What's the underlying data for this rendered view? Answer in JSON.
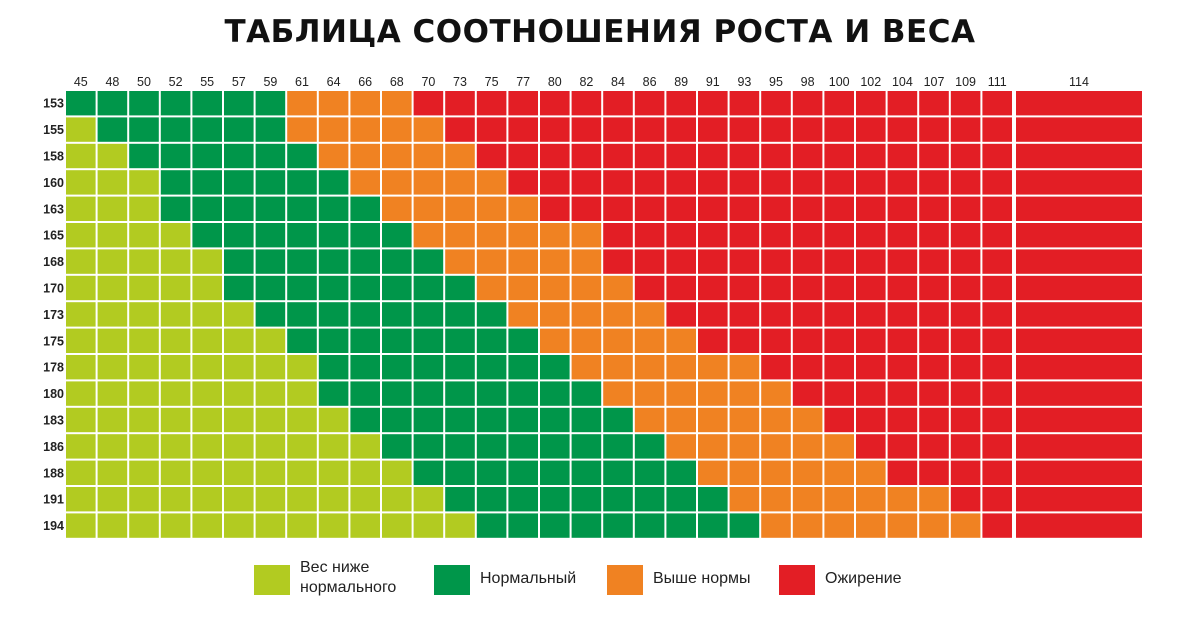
{
  "title": "ТАБЛИЦА СООТНОШЕНИЯ РОСТА И ВЕСА",
  "colors": {
    "underweight": "#b2cb21",
    "normal": "#00964a",
    "overweight": "#f08222",
    "obese": "#e31e25"
  },
  "chart_data": {
    "type": "heatmap",
    "title": "ТАБЛИЦА СООТНОШЕНИЯ РОСТА И ВЕСА",
    "x": [
      "45",
      "48",
      "50",
      "52",
      "55",
      "57",
      "59",
      "61",
      "64",
      "66",
      "68",
      "70",
      "73",
      "75",
      "77",
      "80",
      "82",
      "84",
      "86",
      "89",
      "91",
      "93",
      "95",
      "98",
      "100",
      "102",
      "104",
      "107",
      "109",
      "111",
      "114"
    ],
    "y": [
      "153",
      "155",
      "158",
      "160",
      "163",
      "165",
      "168",
      "170",
      "173",
      "175",
      "178",
      "180",
      "183",
      "186",
      "188",
      "191",
      "194"
    ],
    "categories_legend": [
      "underweight",
      "normal",
      "overweight",
      "obese"
    ],
    "boundaries_note_keys": [
      "normal_start_index",
      "overweight_start_index",
      "obese_start_index"
    ],
    "rows": [
      {
        "height": "153",
        "normal_start_index": 0,
        "overweight_start_index": 7,
        "obese_start_index": 11
      },
      {
        "height": "155",
        "normal_start_index": 1,
        "overweight_start_index": 7,
        "obese_start_index": 12
      },
      {
        "height": "158",
        "normal_start_index": 2,
        "overweight_start_index": 8,
        "obese_start_index": 13
      },
      {
        "height": "160",
        "normal_start_index": 3,
        "overweight_start_index": 9,
        "obese_start_index": 14
      },
      {
        "height": "163",
        "normal_start_index": 3,
        "overweight_start_index": 10,
        "obese_start_index": 15
      },
      {
        "height": "165",
        "normal_start_index": 4,
        "overweight_start_index": 11,
        "obese_start_index": 17
      },
      {
        "height": "168",
        "normal_start_index": 5,
        "overweight_start_index": 12,
        "obese_start_index": 17
      },
      {
        "height": "170",
        "normal_start_index": 5,
        "overweight_start_index": 13,
        "obese_start_index": 18
      },
      {
        "height": "173",
        "normal_start_index": 6,
        "overweight_start_index": 14,
        "obese_start_index": 19
      },
      {
        "height": "175",
        "normal_start_index": 7,
        "overweight_start_index": 15,
        "obese_start_index": 20
      },
      {
        "height": "178",
        "normal_start_index": 8,
        "overweight_start_index": 16,
        "obese_start_index": 22
      },
      {
        "height": "180",
        "normal_start_index": 8,
        "overweight_start_index": 17,
        "obese_start_index": 23
      },
      {
        "height": "183",
        "normal_start_index": 9,
        "overweight_start_index": 18,
        "obese_start_index": 24
      },
      {
        "height": "186",
        "normal_start_index": 10,
        "overweight_start_index": 19,
        "obese_start_index": 25
      },
      {
        "height": "188",
        "normal_start_index": 11,
        "overweight_start_index": 20,
        "obese_start_index": 26
      },
      {
        "height": "191",
        "normal_start_index": 12,
        "overweight_start_index": 21,
        "obese_start_index": 28
      },
      {
        "height": "194",
        "normal_start_index": 13,
        "overweight_start_index": 22,
        "obese_start_index": 29
      }
    ]
  },
  "legend": [
    {
      "key": "underweight",
      "label": "Вес ниже\nнормального"
    },
    {
      "key": "normal",
      "label": "Нормальный"
    },
    {
      "key": "overweight",
      "label": "Выше нормы"
    },
    {
      "key": "obese",
      "label": "Ожирение"
    }
  ]
}
